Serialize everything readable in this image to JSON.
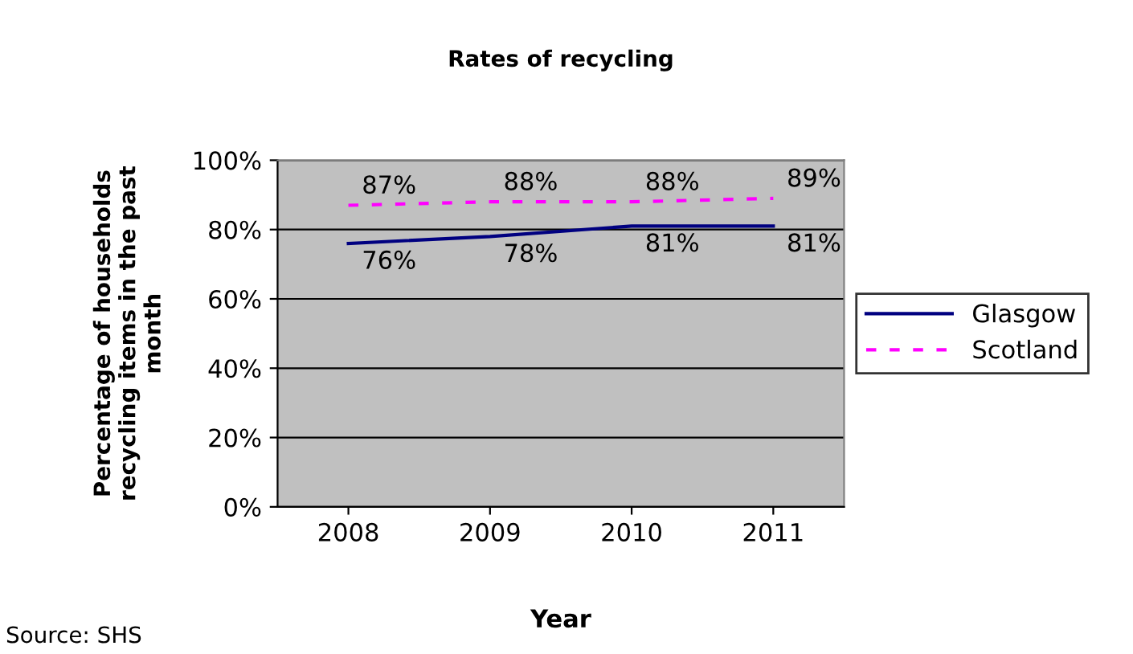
{
  "chart_data": {
    "type": "line",
    "title": "Rates of recycling",
    "xlabel": "Year",
    "ylabel": "Percentage of households\nrecycling items in the past\nmonth",
    "categories": [
      "2008",
      "2009",
      "2010",
      "2011"
    ],
    "series": [
      {
        "name": "Glasgow",
        "color": "#000080",
        "values": [
          76,
          78,
          81,
          81
        ],
        "value_labels": [
          "76%",
          "78%",
          "81%",
          "81%"
        ],
        "line_style": "solid"
      },
      {
        "name": "Scotland",
        "color": "#ff00ff",
        "values": [
          87,
          88,
          88,
          89
        ],
        "value_labels": [
          "87%",
          "88%",
          "88%",
          "89%"
        ],
        "line_style": "dashed"
      }
    ],
    "ylim": [
      0,
      100
    ],
    "yticks": [
      {
        "value": 0,
        "label": "0%"
      },
      {
        "value": 20,
        "label": "20%"
      },
      {
        "value": 40,
        "label": "40%"
      },
      {
        "value": 60,
        "label": "60%"
      },
      {
        "value": 80,
        "label": "80%"
      },
      {
        "value": 100,
        "label": "100%"
      }
    ],
    "grid": "y",
    "legend": "right",
    "marker": "none",
    "annotations": [
      "Source: SHS"
    ]
  }
}
